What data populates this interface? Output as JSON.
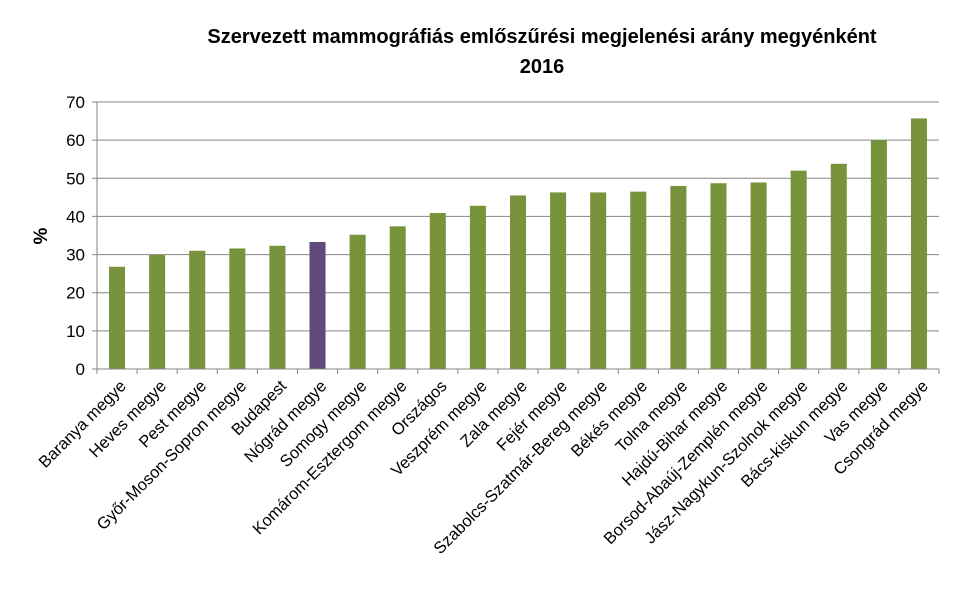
{
  "chart_data": {
    "type": "bar",
    "title_lines": [
      "Szervezett mammográfiás emlőszűrési megjelenési arány megyénként",
      "2016"
    ],
    "xlabel": "",
    "ylabel": "%",
    "ylim": [
      0,
      70
    ],
    "yticks": [
      0,
      10,
      20,
      30,
      40,
      50,
      60,
      70
    ],
    "grid": true,
    "legend": "none",
    "categories": [
      "Baranya megye",
      "Heves megye",
      "Pest megye",
      "Győr-Moson-Sopron megye",
      "Budapest",
      "Nógrád megye",
      "Somogy megye",
      "Komárom-Esztergom megye",
      "Országos",
      "Veszprém megye",
      "Zala megye",
      "Fejér megye",
      "Szabolcs-Szatmár-Bereg megye",
      "Békés megye",
      "Tolna megye",
      "Hajdú-Bihar megye",
      "Borsod-Abaúj-Zemplén megye",
      "Jász-Nagykun-Szolnok megye",
      "Bács-kiskun megye",
      "Vas megye",
      "Csongrád megye"
    ],
    "values": [
      26.8,
      29.9,
      31.0,
      31.6,
      32.3,
      33.3,
      35.2,
      37.4,
      40.9,
      42.8,
      45.5,
      46.3,
      46.3,
      46.5,
      48.0,
      48.7,
      48.9,
      52.0,
      53.8,
      60.0,
      65.7
    ],
    "bar_color": "#77933C",
    "highlight_category": "Nógrád megye",
    "highlight_color": "#604A7B",
    "grid_color": "#868686"
  }
}
